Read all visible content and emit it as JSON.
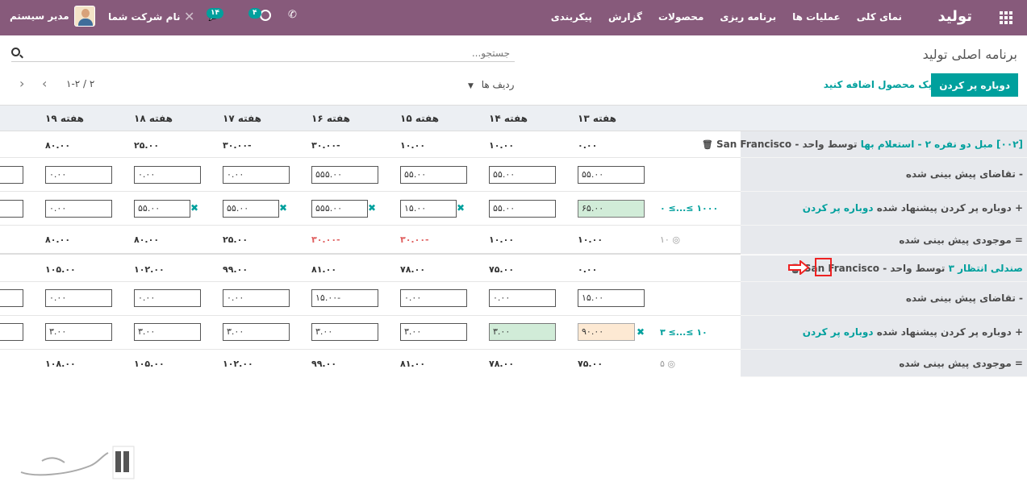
{
  "topbar": {
    "brand": "تولید",
    "menu": [
      "نمای کلی",
      "عملیات ها",
      "برنامه ریزی",
      "محصولات",
      "گزارش",
      "پیکربندی"
    ],
    "user_name": "مدیر سیستم",
    "company": "نام شرکت شما",
    "chat_count": "۱۴",
    "activity_count": "۴"
  },
  "page": {
    "title": "برنامه اصلی تولید",
    "search_placeholder": "جستجو...",
    "replenish_button": "دوباره پر کردن",
    "add_product": "یک محصول اضافه کنید",
    "rows_dropdown": "ردیف ها",
    "pager": "۱-۲ / ۲"
  },
  "weeks": [
    "هفته ۱۳",
    "هفته ۱۴",
    "هفته ۱۵",
    "هفته ۱۶",
    "هفته ۱۷",
    "هفته ۱۸",
    "هفته ۱۹"
  ],
  "products": [
    {
      "name": "[۰۰۲] مبل دو نفره ۲ - استعلام بها",
      "suffix": "توسط واحد - San Francisco",
      "header_values": [
        "۰.۰۰",
        "۱۰.۰۰",
        "۱۰.۰۰",
        "۳۰.۰۰-",
        "۳۰.۰۰-",
        "۲۵.۰۰",
        "۸۰.۰۰"
      ],
      "demand_label": "- تقاضای پیش بینی شده",
      "demand_values": [
        "۵۵.۰۰",
        "۵۵.۰۰",
        "۵۵.۰۰",
        "۵۵۵.۰۰",
        "۰.۰۰",
        "۰.۰۰",
        "۰.۰۰"
      ],
      "replenish_label": "+ دوباره پر کردن پیشنهاد شده",
      "replenish_link": "دوباره پر کردن",
      "replenish_range": "۰ ≤...≤ ۱۰۰۰",
      "replenish_values": [
        "۶۵.۰۰",
        "۵۵.۰۰",
        "۱۵.۰۰",
        "۵۵۵.۰۰",
        "۵۵.۰۰",
        "۵۵.۰۰",
        "۰.۰۰"
      ],
      "stock_label": "= موجودی پیش بینی شده",
      "stock_safety": "۱۰",
      "stock_values": [
        "۱۰.۰۰",
        "۱۰.۰۰",
        "۳۰.۰۰-",
        "۳۰.۰۰-",
        "۲۵.۰۰",
        "۸۰.۰۰",
        "۸۰.۰۰"
      ]
    },
    {
      "name": "صندلی انتظار ۳",
      "suffix": "توسط واحد - San Francisco",
      "header_values": [
        "۰.۰۰",
        "۷۵.۰۰",
        "۷۸.۰۰",
        "۸۱.۰۰",
        "۹۹.۰۰",
        "۱۰۲.۰۰",
        "۱۰۵.۰۰"
      ],
      "demand_label": "- تقاضای پیش بینی شده",
      "demand_values": [
        "۱۵.۰۰",
        "۰.۰۰",
        "۰.۰۰",
        "۱۵.۰۰-",
        "۰.۰۰",
        "۰.۰۰",
        "۰.۰۰"
      ],
      "replenish_label": "+ دوباره پر کردن پیشنهاد شده",
      "replenish_link": "دوباره پر کردن",
      "replenish_range": "۳ ≤...≤ ۱۰",
      "replenish_values": [
        "۹۰.۰۰",
        "۳.۰۰",
        "۳.۰۰",
        "۳.۰۰",
        "۳.۰۰",
        "۳.۰۰",
        "۳.۰۰"
      ],
      "stock_label": "= موجودی پیش بینی شده",
      "stock_safety": "۵",
      "stock_values": [
        "۷۵.۰۰",
        "۷۸.۰۰",
        "۸۱.۰۰",
        "۹۹.۰۰",
        "۱۰۲.۰۰",
        "۱۰۵.۰۰",
        "۱۰۸.۰۰"
      ]
    }
  ],
  "accent_color": "#875a7b",
  "teal_color": "#00a09d"
}
